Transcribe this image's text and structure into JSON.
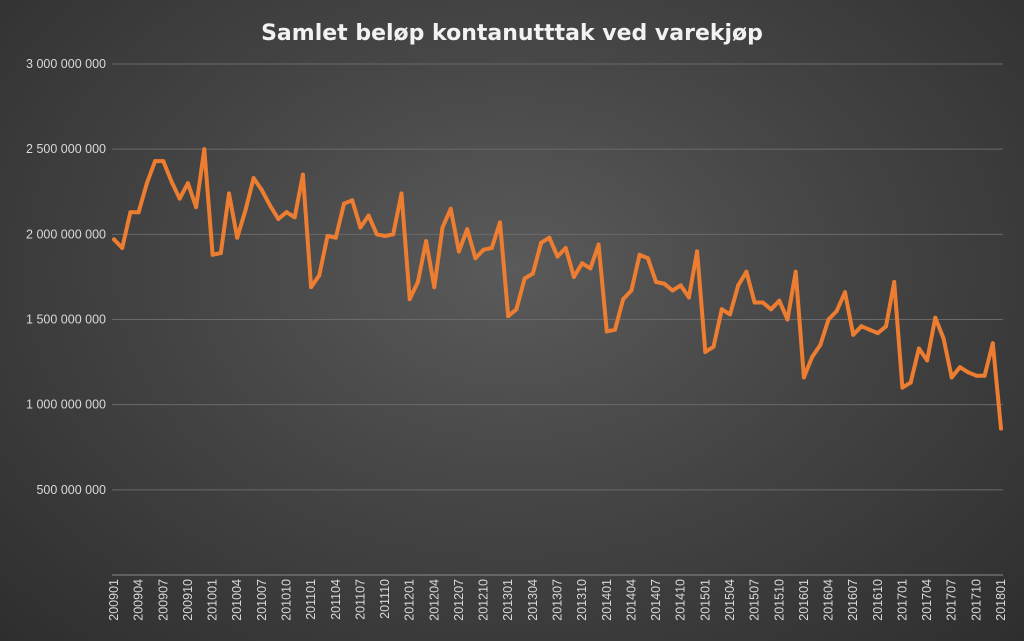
{
  "chart_data": {
    "type": "line",
    "title": "Samlet beløp kontanutttak ved varekjøp",
    "xlabel": "",
    "ylabel": "",
    "ylim": [
      0,
      3000000000
    ],
    "y_ticks": [
      {
        "value": 500000000,
        "label": "500 000 000"
      },
      {
        "value": 1000000000,
        "label": "1 000 000 000"
      },
      {
        "value": 1500000000,
        "label": "1 500 000 000"
      },
      {
        "value": 2000000000,
        "label": "2 000 000 000"
      },
      {
        "value": 2500000000,
        "label": "2 500 000 000"
      },
      {
        "value": 3000000000,
        "label": "3 000 000 000"
      }
    ],
    "grid": true,
    "legend": "none",
    "x_tick_labels": [
      "200901",
      "200904",
      "200907",
      "200910",
      "201001",
      "201004",
      "201007",
      "201010",
      "201101",
      "201104",
      "201107",
      "201110",
      "201201",
      "201204",
      "201207",
      "201210",
      "201301",
      "201304",
      "201307",
      "201310",
      "201401",
      "201404",
      "201407",
      "201410",
      "201501",
      "201504",
      "201507",
      "201510",
      "201601",
      "201604",
      "201607",
      "201610",
      "201701",
      "201704",
      "201707",
      "201710",
      "201801"
    ],
    "x": [
      "200901",
      "200902",
      "200903",
      "200904",
      "200905",
      "200906",
      "200907",
      "200908",
      "200909",
      "200910",
      "200911",
      "200912",
      "201001",
      "201002",
      "201003",
      "201004",
      "201005",
      "201006",
      "201007",
      "201008",
      "201009",
      "201010",
      "201011",
      "201012",
      "201101",
      "201102",
      "201103",
      "201104",
      "201105",
      "201106",
      "201107",
      "201108",
      "201109",
      "201110",
      "201111",
      "201112",
      "201201",
      "201202",
      "201203",
      "201204",
      "201205",
      "201206",
      "201207",
      "201208",
      "201209",
      "201210",
      "201211",
      "201212",
      "201301",
      "201302",
      "201303",
      "201304",
      "201305",
      "201306",
      "201307",
      "201308",
      "201309",
      "201310",
      "201311",
      "201312",
      "201401",
      "201402",
      "201403",
      "201404",
      "201405",
      "201406",
      "201407",
      "201408",
      "201409",
      "201410",
      "201411",
      "201412",
      "201501",
      "201502",
      "201503",
      "201504",
      "201505",
      "201506",
      "201507",
      "201508",
      "201509",
      "201510",
      "201511",
      "201512",
      "201601",
      "201602",
      "201603",
      "201604",
      "201605",
      "201606",
      "201607",
      "201608",
      "201609",
      "201610",
      "201611",
      "201612",
      "201701",
      "201702",
      "201703",
      "201704",
      "201705",
      "201706",
      "201707",
      "201708",
      "201709",
      "201710",
      "201711",
      "201712",
      "201801"
    ],
    "series": [
      {
        "color": "#ed7d31",
        "values": [
          1970000000,
          1920000000,
          2130000000,
          2130000000,
          2300000000,
          2430000000,
          2430000000,
          2310000000,
          2210000000,
          2300000000,
          2160000000,
          2500000000,
          1880000000,
          1890000000,
          2240000000,
          1980000000,
          2140000000,
          2330000000,
          2260000000,
          2170000000,
          2090000000,
          2130000000,
          2100000000,
          2350000000,
          1690000000,
          1760000000,
          1990000000,
          1980000000,
          2180000000,
          2200000000,
          2040000000,
          2110000000,
          2000000000,
          1990000000,
          2000000000,
          2240000000,
          1620000000,
          1720000000,
          1960000000,
          1690000000,
          2040000000,
          2150000000,
          1900000000,
          2030000000,
          1860000000,
          1910000000,
          1920000000,
          2070000000,
          1520000000,
          1560000000,
          1740000000,
          1770000000,
          1950000000,
          1980000000,
          1870000000,
          1920000000,
          1750000000,
          1830000000,
          1800000000,
          1940000000,
          1430000000,
          1440000000,
          1620000000,
          1670000000,
          1880000000,
          1860000000,
          1720000000,
          1710000000,
          1670000000,
          1700000000,
          1630000000,
          1900000000,
          1310000000,
          1340000000,
          1560000000,
          1530000000,
          1700000000,
          1780000000,
          1600000000,
          1600000000,
          1560000000,
          1610000000,
          1500000000,
          1780000000,
          1160000000,
          1280000000,
          1350000000,
          1500000000,
          1550000000,
          1660000000,
          1410000000,
          1460000000,
          1440000000,
          1420000000,
          1460000000,
          1720000000,
          1100000000,
          1130000000,
          1330000000,
          1260000000,
          1510000000,
          1390000000,
          1160000000,
          1220000000,
          1190000000,
          1170000000,
          1170000000,
          1360000000,
          860000000
        ]
      }
    ]
  }
}
